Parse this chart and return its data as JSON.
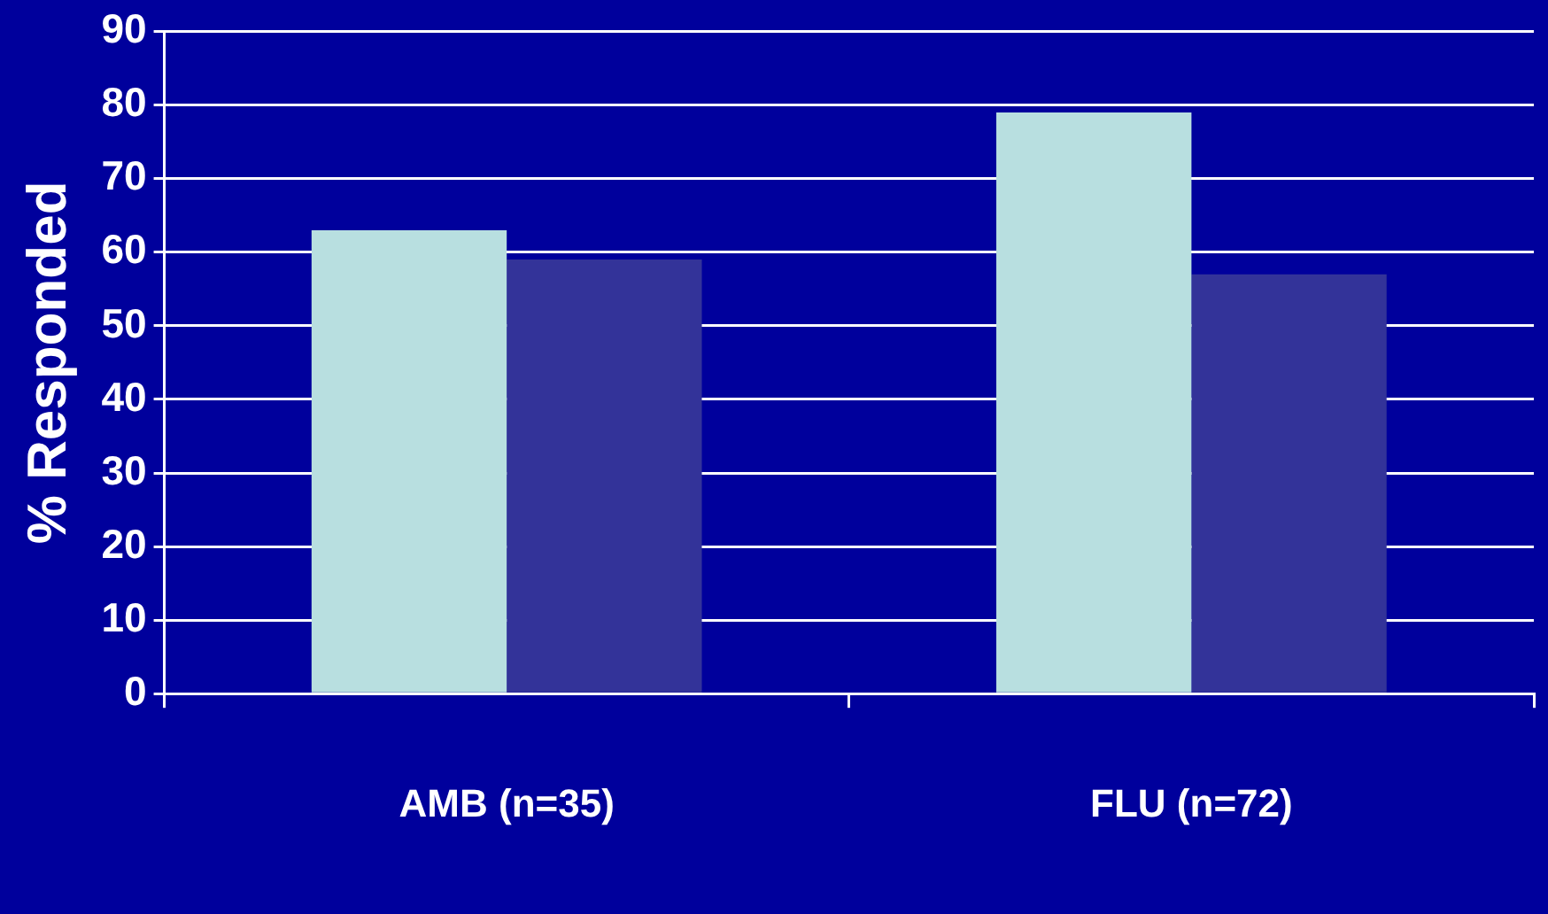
{
  "chart_data": {
    "type": "bar",
    "ylabel": "% Responded",
    "categories": [
      "AMB (n=35)",
      "FLU (n=72)"
    ],
    "series": [
      {
        "color": "#b8dfe0",
        "values": [
          63,
          79
        ]
      },
      {
        "color": "#333399",
        "values": [
          59,
          57
        ]
      }
    ],
    "ylim": [
      0,
      90
    ],
    "yticks": [
      0,
      10,
      20,
      30,
      40,
      50,
      60,
      70,
      80,
      90
    ],
    "grid": "y",
    "legend": false
  }
}
